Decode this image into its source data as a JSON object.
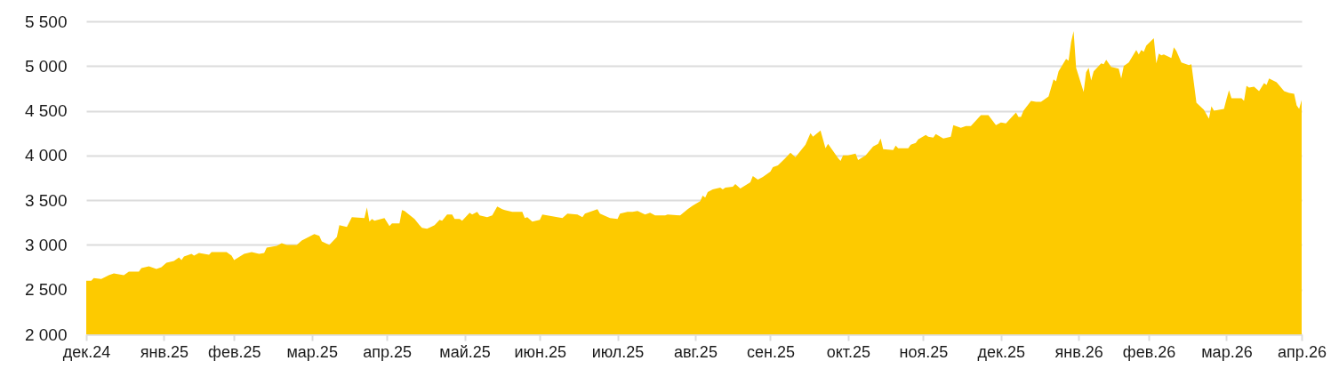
{
  "chart_data": {
    "type": "area",
    "color": "#fdca00",
    "x": [
      "2024-12-31",
      "2025-01-02",
      "2025-01-03",
      "2025-01-06",
      "2025-01-09",
      "2025-01-11",
      "2025-01-15",
      "2025-01-17",
      "2025-01-21",
      "2025-01-22",
      "2025-01-25",
      "2025-01-28",
      "2025-01-30",
      "2025-02-01",
      "2025-02-04",
      "2025-02-06",
      "2025-02-07",
      "2025-02-08",
      "2025-02-11",
      "2025-02-12",
      "2025-02-14",
      "2025-02-18",
      "2025-02-19",
      "2025-02-25",
      "2025-02-27",
      "2025-02-28",
      "2025-03-04",
      "2025-03-07",
      "2025-03-10",
      "2025-03-12",
      "2025-03-13",
      "2025-03-17",
      "2025-03-19",
      "2025-03-21",
      "2025-03-25",
      "2025-03-27",
      "2025-04-01",
      "2025-04-03",
      "2025-04-04",
      "2025-04-07",
      "2025-04-10",
      "2025-04-11",
      "2025-04-14",
      "2025-04-16",
      "2025-04-21",
      "2025-04-22",
      "2025-04-23",
      "2025-04-24",
      "2025-04-25",
      "2025-04-29",
      "2025-05-01",
      "2025-05-02",
      "2025-05-05",
      "2025-05-06",
      "2025-05-07",
      "2025-05-11",
      "2025-05-13",
      "2025-05-14",
      "2025-05-16",
      "2025-05-19",
      "2025-05-21",
      "2025-05-22",
      "2025-05-24",
      "2025-05-26",
      "2025-05-27",
      "2025-05-29",
      "2025-05-30",
      "2025-06-02",
      "2025-06-03",
      "2025-06-05",
      "2025-06-06",
      "2025-06-09",
      "2025-06-11",
      "2025-06-13",
      "2025-06-15",
      "2025-06-16",
      "2025-06-19",
      "2025-06-23",
      "2025-06-24",
      "2025-06-25",
      "2025-06-27",
      "2025-06-30",
      "2025-07-01",
      "2025-07-03",
      "2025-07-05",
      "2025-07-09",
      "2025-07-11",
      "2025-07-15",
      "2025-07-17",
      "2025-07-18",
      "2025-07-21",
      "2025-07-23",
      "2025-07-24",
      "2025-07-28",
      "2025-07-31",
      "2025-08-01",
      "2025-08-04",
      "2025-08-06",
      "2025-08-08",
      "2025-08-11",
      "2025-08-13",
      "2025-08-15",
      "2025-08-19",
      "2025-08-20",
      "2025-08-25",
      "2025-08-28",
      "2025-08-30",
      "2025-09-02",
      "2025-09-03",
      "2025-09-04",
      "2025-09-05",
      "2025-09-07",
      "2025-09-10",
      "2025-09-11",
      "2025-09-12",
      "2025-09-15",
      "2025-09-16",
      "2025-09-18",
      "2025-09-22",
      "2025-09-23",
      "2025-09-25",
      "2025-09-27",
      "2025-09-30",
      "2025-10-01",
      "2025-10-03",
      "2025-10-06",
      "2025-10-08",
      "2025-10-10",
      "2025-10-14",
      "2025-10-16",
      "2025-10-17",
      "2025-10-20",
      "2025-10-22",
      "2025-10-23",
      "2025-10-27",
      "2025-10-28",
      "2025-10-29",
      "2025-10-31",
      "2025-11-03",
      "2025-11-04",
      "2025-11-07",
      "2025-11-10",
      "2025-11-12",
      "2025-11-13",
      "2025-11-14",
      "2025-11-18",
      "2025-11-19",
      "2025-11-20",
      "2025-11-24",
      "2025-11-25",
      "2025-11-27",
      "2025-11-28",
      "2025-12-01",
      "2025-12-02",
      "2025-12-04",
      "2025-12-05",
      "2025-12-08",
      "2025-12-11",
      "2025-12-12",
      "2025-12-15",
      "2025-12-17",
      "2025-12-19",
      "2025-12-23",
      "2025-12-26",
      "2025-12-29",
      "2025-12-31",
      "2026-01-02",
      "2026-01-06",
      "2026-01-07",
      "2026-01-08",
      "2026-01-09",
      "2026-01-12",
      "2026-01-14",
      "2026-01-16",
      "2026-01-19",
      "2026-01-21",
      "2026-01-22",
      "2026-01-23",
      "2026-01-26",
      "2026-01-27",
      "2026-01-28",
      "2026-01-29",
      "2026-01-30",
      "2026-02-02",
      "2026-02-03",
      "2026-02-04",
      "2026-02-05",
      "2026-02-06",
      "2026-02-09",
      "2026-02-10",
      "2026-02-11",
      "2026-02-13",
      "2026-02-16",
      "2026-02-17",
      "2026-02-18",
      "2026-02-20",
      "2026-02-23",
      "2026-02-24",
      "2026-02-25",
      "2026-02-26",
      "2026-02-27",
      "2026-03-02",
      "2026-03-03",
      "2026-03-04",
      "2026-03-05",
      "2026-03-06",
      "2026-03-09",
      "2026-03-10",
      "2026-03-11",
      "2026-03-13",
      "2026-03-16",
      "2026-03-17",
      "2026-03-18",
      "2026-03-19",
      "2026-03-22",
      "2026-03-23",
      "2026-03-24",
      "2026-03-25",
      "2026-03-26",
      "2026-03-28",
      "2026-03-30",
      "2026-03-31",
      "2026-04-01",
      "2026-04-02",
      "2026-04-06",
      "2026-04-07",
      "2026-04-08",
      "2026-04-09",
      "2026-04-11",
      "2026-04-13",
      "2026-04-15",
      "2026-04-16",
      "2026-04-17",
      "2026-04-20",
      "2026-04-23",
      "2026-04-25",
      "2026-04-27",
      "2026-04-28",
      "2026-04-29",
      "2026-04-30"
    ],
    "values": [
      2600,
      2600,
      2630,
      2620,
      2660,
      2680,
      2660,
      2700,
      2700,
      2740,
      2760,
      2730,
      2750,
      2800,
      2820,
      2860,
      2830,
      2870,
      2900,
      2880,
      2910,
      2890,
      2920,
      2920,
      2880,
      2830,
      2900,
      2920,
      2900,
      2910,
      2970,
      2990,
      3020,
      3000,
      3000,
      3050,
      3120,
      3100,
      3040,
      3000,
      3090,
      3220,
      3200,
      3310,
      3300,
      3420,
      3260,
      3290,
      3270,
      3300,
      3210,
      3240,
      3240,
      3390,
      3380,
      3290,
      3220,
      3190,
      3180,
      3220,
      3280,
      3270,
      3340,
      3340,
      3290,
      3290,
      3270,
      3360,
      3340,
      3370,
      3330,
      3310,
      3330,
      3430,
      3400,
      3390,
      3370,
      3370,
      3300,
      3310,
      3260,
      3280,
      3340,
      3330,
      3320,
      3300,
      3350,
      3340,
      3310,
      3350,
      3380,
      3400,
      3350,
      3300,
      3290,
      3350,
      3370,
      3370,
      3380,
      3340,
      3360,
      3330,
      3330,
      3340,
      3330,
      3400,
      3440,
      3490,
      3550,
      3530,
      3590,
      3620,
      3640,
      3620,
      3640,
      3650,
      3680,
      3630,
      3700,
      3770,
      3730,
      3760,
      3820,
      3870,
      3890,
      3970,
      4030,
      3980,
      4120,
      4250,
      4210,
      4280,
      4080,
      4130,
      3970,
      3940,
      4000,
      4000,
      4020,
      3950,
      4000,
      4100,
      4130,
      4190,
      4070,
      4060,
      4110,
      4080,
      4080,
      4120,
      4140,
      4180,
      4230,
      4210,
      4200,
      4240,
      4190,
      4210,
      4340,
      4310,
      4330,
      4330,
      4450,
      4450,
      4340,
      4370,
      4360,
      4480,
      4430,
      4430,
      4500,
      4610,
      4600,
      4600,
      4660,
      4850,
      4830,
      4940,
      5080,
      5060,
      5270,
      5390,
      4980,
      4710,
      4930,
      4980,
      4840,
      4940,
      5030,
      5020,
      5070,
      4990,
      4970,
      4860,
      5000,
      5040,
      5180,
      5130,
      5180,
      5160,
      5230,
      5310,
      5030,
      5140,
      5120,
      5130,
      5090,
      5210,
      5170,
      5040,
      5010,
      5020,
      4810,
      4590,
      4510,
      4460,
      4410,
      4550,
      4500,
      4510,
      4520,
      4630,
      4730,
      4640,
      4640,
      4610,
      4780,
      4760,
      4770,
      4720,
      4810,
      4790,
      4860,
      4820,
      4720,
      4700,
      4690,
      4560,
      4520,
      4620
    ],
    "xlim": [
      "2024-12-31",
      "2026-04-30"
    ],
    "xticks": [
      {
        "value": "2024-12-31",
        "label": "дек.24"
      },
      {
        "value": "2025-01-31",
        "label": "янв.25"
      },
      {
        "value": "2025-02-28",
        "label": "фев.25"
      },
      {
        "value": "2025-03-31",
        "label": "мар.25"
      },
      {
        "value": "2025-04-30",
        "label": "апр.25"
      },
      {
        "value": "2025-05-31",
        "label": "май.25"
      },
      {
        "value": "2025-06-30",
        "label": "июн.25"
      },
      {
        "value": "2025-07-31",
        "label": "июл.25"
      },
      {
        "value": "2025-08-31",
        "label": "авг.25"
      },
      {
        "value": "2025-09-30",
        "label": "сен.25"
      },
      {
        "value": "2025-10-31",
        "label": "окт.25"
      },
      {
        "value": "2025-11-30",
        "label": "ноя.25"
      },
      {
        "value": "2025-12-31",
        "label": "дек.25"
      },
      {
        "value": "2026-01-31",
        "label": "янв.26"
      },
      {
        "value": "2026-02-28",
        "label": "фев.26"
      },
      {
        "value": "2026-03-31",
        "label": "мар.26"
      },
      {
        "value": "2026-04-30",
        "label": "апр.26"
      }
    ],
    "ylim": [
      2000,
      5500
    ],
    "yticks": [
      {
        "value": 2000,
        "label": "2 000"
      },
      {
        "value": 2500,
        "label": "2 500"
      },
      {
        "value": 3000,
        "label": "3 000"
      },
      {
        "value": 3500,
        "label": "3 500"
      },
      {
        "value": 4000,
        "label": "4 000"
      },
      {
        "value": 4500,
        "label": "4 500"
      },
      {
        "value": 5000,
        "label": "5 000"
      },
      {
        "value": 5500,
        "label": "5 500"
      }
    ],
    "grid": "y"
  }
}
